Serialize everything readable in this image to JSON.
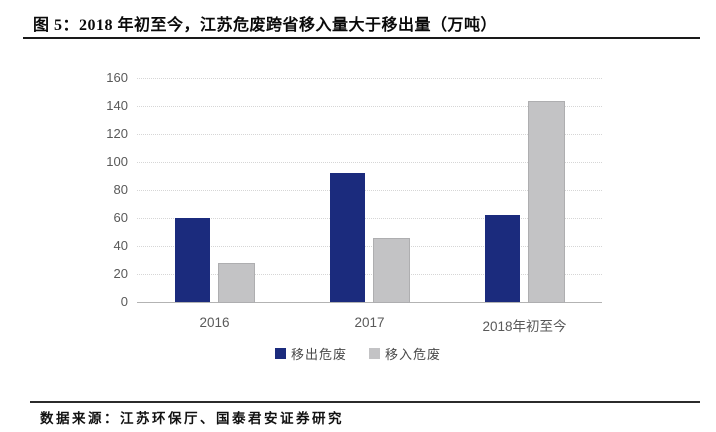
{
  "figure": {
    "title": "图 5：2018 年初至今，江苏危废跨省移入量大于移出量（万吨）",
    "source": "数据来源：江苏环保厅、国泰君安证券研究"
  },
  "colors": {
    "series_out": "#1b2b7d",
    "series_in": "#c3c3c5",
    "series_in_border": "#aeaeb0",
    "tick_text": "#595959",
    "gridline": "#d6d6d6"
  },
  "chart_data": {
    "type": "bar",
    "title": "图 5：2018 年初至今，江苏危废跨省移入量大于移出量（万吨）",
    "categories": [
      "2016",
      "2017",
      "2018年初至今"
    ],
    "series": [
      {
        "name": "移出危废",
        "color": "#1b2b7d",
        "values": [
          60,
          92,
          62
        ]
      },
      {
        "name": "移入危废",
        "color": "#c3c3c5",
        "values": [
          27,
          45,
          143
        ]
      }
    ],
    "xlabel": "",
    "ylabel": "",
    "ylim": [
      0,
      160
    ],
    "ytick_step": 20,
    "grid": true,
    "legend_position": "bottom"
  }
}
